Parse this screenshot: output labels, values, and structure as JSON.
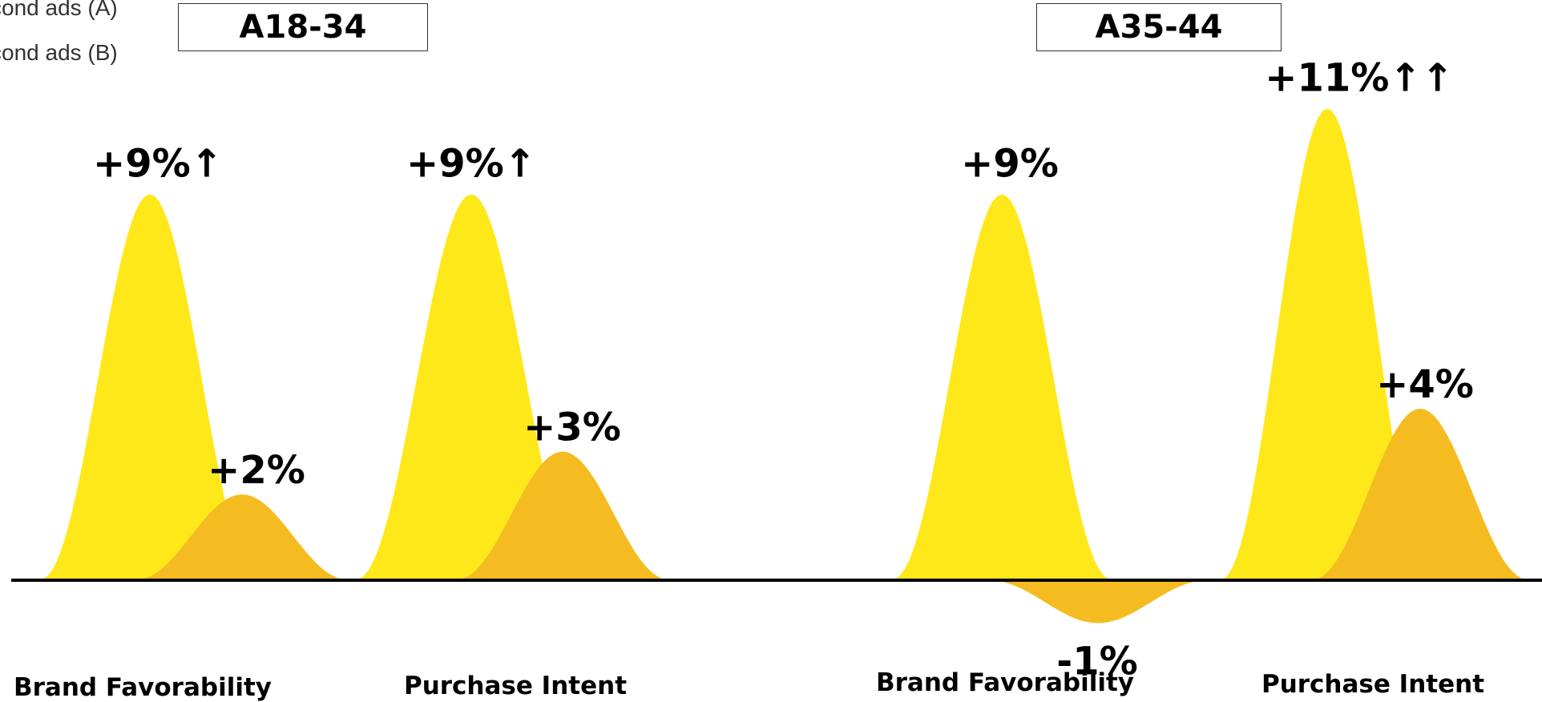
{
  "legend": {
    "series_a": "cond ads (A)",
    "series_b": "cond ads (B)"
  },
  "groups": [
    "A18-34",
    "A35-44"
  ],
  "chart_data": {
    "type": "area",
    "categories": [
      "Brand Favorability",
      "Purchase Intent",
      "Brand Favorability",
      "Purchase Intent"
    ],
    "series": [
      {
        "name": "cond ads (A)",
        "color": "#ffe81a",
        "values": [
          9,
          9,
          9,
          11
        ],
        "labels": [
          "+9%↑",
          "+9%↑",
          "+9%",
          "+11%↑↑"
        ]
      },
      {
        "name": "cond ads (B)",
        "color": "#f5bc22",
        "values": [
          2,
          3,
          -1,
          4
        ],
        "labels": [
          "+2%",
          "+3%",
          "-1%",
          "+4%"
        ]
      }
    ],
    "ylim": [
      -1,
      11
    ]
  }
}
